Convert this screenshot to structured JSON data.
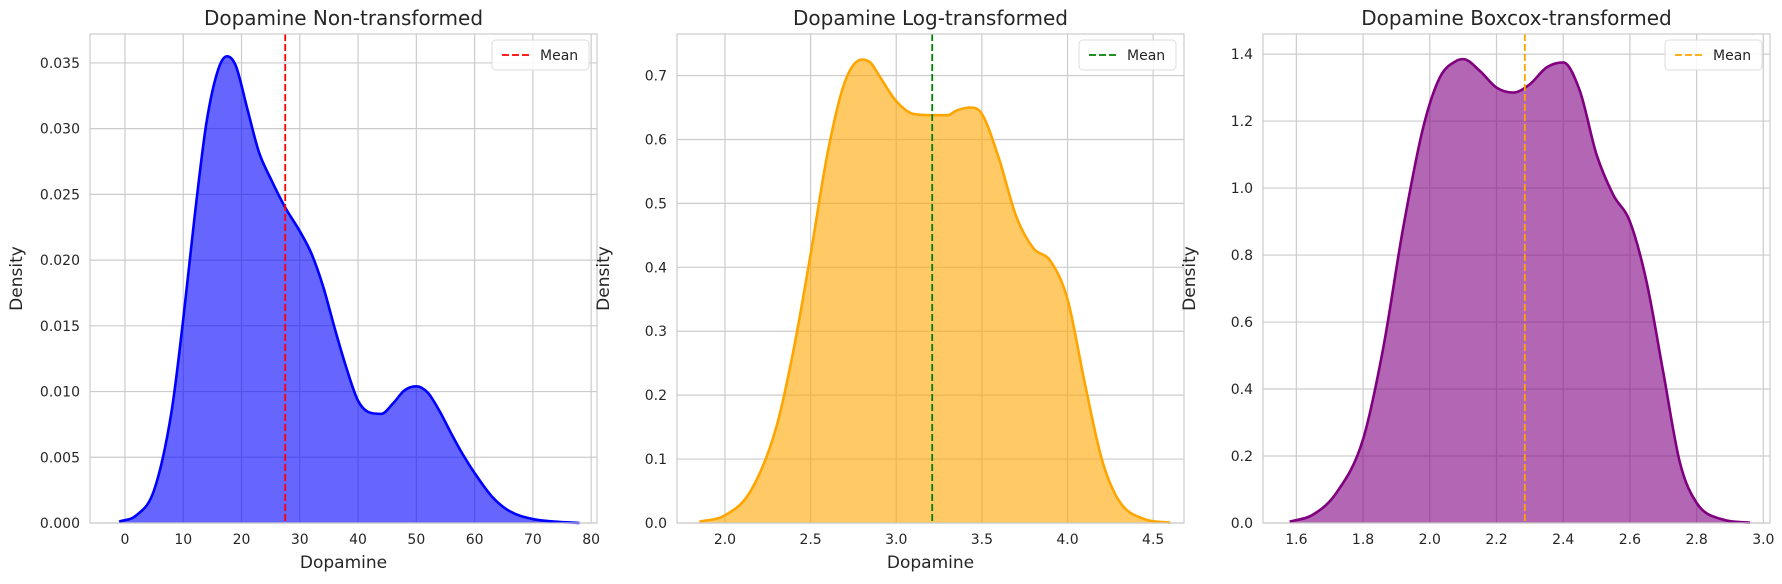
{
  "chart_data": [
    {
      "type": "area",
      "title": "Dopamine Non-transformed",
      "xlabel": "Dopamine",
      "ylabel": "Density",
      "color": "#0000ff",
      "mean_color": "#ff0000",
      "legend_label": "Mean",
      "legend_position": "top-right",
      "grid": true,
      "mean": 27.5,
      "xlim": [
        -6,
        81
      ],
      "ylim": [
        0,
        0.0372
      ],
      "xticks": [
        0,
        10,
        20,
        30,
        40,
        50,
        60,
        70,
        80
      ],
      "yticks": [
        0.0,
        0.005,
        0.01,
        0.015,
        0.02,
        0.025,
        0.03,
        0.035
      ],
      "ytick_labels": [
        "0.000",
        "0.005",
        "0.010",
        "0.015",
        "0.020",
        "0.025",
        "0.030",
        "0.035"
      ],
      "x": [
        -1,
        2,
        5,
        8,
        10,
        12,
        14,
        16,
        17.5,
        19,
        21,
        23,
        25,
        27.5,
        30,
        32,
        34,
        36,
        38,
        40,
        42,
        44,
        46,
        48,
        50,
        52,
        54,
        56,
        58,
        60,
        63,
        66,
        70,
        74,
        78
      ],
      "y": [
        0.0001,
        0.0006,
        0.0025,
        0.0085,
        0.0155,
        0.0235,
        0.0305,
        0.0345,
        0.0355,
        0.0348,
        0.0315,
        0.0282,
        0.0262,
        0.024,
        0.0222,
        0.0205,
        0.018,
        0.0148,
        0.0118,
        0.0093,
        0.0084,
        0.0083,
        0.0091,
        0.0101,
        0.0104,
        0.0099,
        0.0085,
        0.0068,
        0.0052,
        0.0038,
        0.002,
        0.0009,
        0.0003,
        0.0001,
        0.0
      ]
    },
    {
      "type": "area",
      "title": "Dopamine Log-transformed",
      "xlabel": "Dopamine",
      "ylabel": "Density",
      "color": "#ffa500",
      "mean_color": "#008000",
      "legend_label": "Mean",
      "legend_position": "top-right",
      "grid": true,
      "mean": 3.21,
      "xlim": [
        1.72,
        4.68
      ],
      "ylim": [
        0,
        0.765
      ],
      "xticks": [
        2.0,
        2.5,
        3.0,
        3.5,
        4.0,
        4.5
      ],
      "xtick_labels": [
        "2.0",
        "2.5",
        "3.0",
        "3.5",
        "4.0",
        "4.5"
      ],
      "yticks": [
        0.0,
        0.1,
        0.2,
        0.3,
        0.4,
        0.5,
        0.6,
        0.7
      ],
      "ytick_labels": [
        "0.0",
        "0.1",
        "0.2",
        "0.3",
        "0.4",
        "0.5",
        "0.6",
        "0.7"
      ],
      "x": [
        1.85,
        2.0,
        2.15,
        2.3,
        2.4,
        2.5,
        2.6,
        2.7,
        2.8,
        2.85,
        2.9,
        3.0,
        3.1,
        3.2,
        3.3,
        3.35,
        3.43,
        3.5,
        3.6,
        3.7,
        3.8,
        3.9,
        4.0,
        4.1,
        4.2,
        4.3,
        4.45,
        4.6
      ],
      "y": [
        0.002,
        0.012,
        0.05,
        0.15,
        0.27,
        0.42,
        0.58,
        0.69,
        0.725,
        0.72,
        0.7,
        0.66,
        0.64,
        0.638,
        0.638,
        0.645,
        0.65,
        0.64,
        0.57,
        0.48,
        0.43,
        0.41,
        0.35,
        0.22,
        0.1,
        0.035,
        0.006,
        0.0005
      ]
    },
    {
      "type": "area",
      "title": "Dopamine Boxcox-transformed",
      "xlabel": "",
      "ylabel": "Density",
      "color": "#800080",
      "mean_color": "#ffa500",
      "legend_label": "Mean",
      "legend_position": "top-right",
      "grid": true,
      "mean": 2.285,
      "xlim": [
        1.5,
        3.02
      ],
      "ylim": [
        0,
        1.46
      ],
      "xticks": [
        1.6,
        1.8,
        2.0,
        2.2,
        2.4,
        2.6,
        2.8,
        3.0
      ],
      "xtick_labels": [
        "1.6",
        "1.8",
        "2.0",
        "2.2",
        "2.4",
        "2.6",
        "2.8",
        "3.0"
      ],
      "yticks": [
        0.0,
        0.2,
        0.4,
        0.6,
        0.8,
        1.0,
        1.2,
        1.4
      ],
      "ytick_labels": [
        "0.0",
        "0.2",
        "0.4",
        "0.6",
        "0.8",
        "1.0",
        "1.2",
        "1.4"
      ],
      "x": [
        1.58,
        1.65,
        1.72,
        1.8,
        1.86,
        1.92,
        1.98,
        2.03,
        2.08,
        2.1,
        2.15,
        2.2,
        2.25,
        2.3,
        2.35,
        2.4,
        2.45,
        2.5,
        2.55,
        2.6,
        2.65,
        2.7,
        2.75,
        2.8,
        2.88,
        2.96
      ],
      "y": [
        0.004,
        0.025,
        0.09,
        0.25,
        0.52,
        0.88,
        1.18,
        1.33,
        1.38,
        1.385,
        1.35,
        1.3,
        1.285,
        1.31,
        1.36,
        1.375,
        1.29,
        1.1,
        0.98,
        0.9,
        0.72,
        0.45,
        0.18,
        0.06,
        0.01,
        0.0008
      ]
    }
  ]
}
